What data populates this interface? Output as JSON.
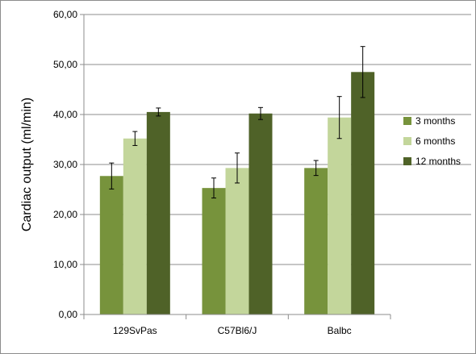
{
  "chart_data": {
    "type": "bar",
    "title": "",
    "xlabel": "",
    "ylabel": "Cardiac output (ml/min)",
    "ylim": [
      0,
      60
    ],
    "yticks": [
      "0,00",
      "10,00",
      "20,00",
      "30,00",
      "40,00",
      "50,00",
      "60,00"
    ],
    "categories": [
      "129SvPas",
      "C57Bl6/J",
      "Balbc"
    ],
    "series": [
      {
        "name": "3 months",
        "color": "#77933c",
        "values": [
          27.7,
          25.3,
          29.3
        ],
        "errors": [
          2.6,
          2.0,
          1.5
        ]
      },
      {
        "name": "6 months",
        "color": "#c3d69b",
        "values": [
          35.2,
          29.3,
          39.4
        ],
        "errors": [
          1.4,
          3.0,
          4.2
        ]
      },
      {
        "name": "12 months",
        "color": "#4f6228",
        "values": [
          40.5,
          40.2,
          48.5
        ],
        "errors": [
          0.8,
          1.2,
          5.1
        ]
      }
    ],
    "grid": true,
    "legend_position": "right"
  }
}
